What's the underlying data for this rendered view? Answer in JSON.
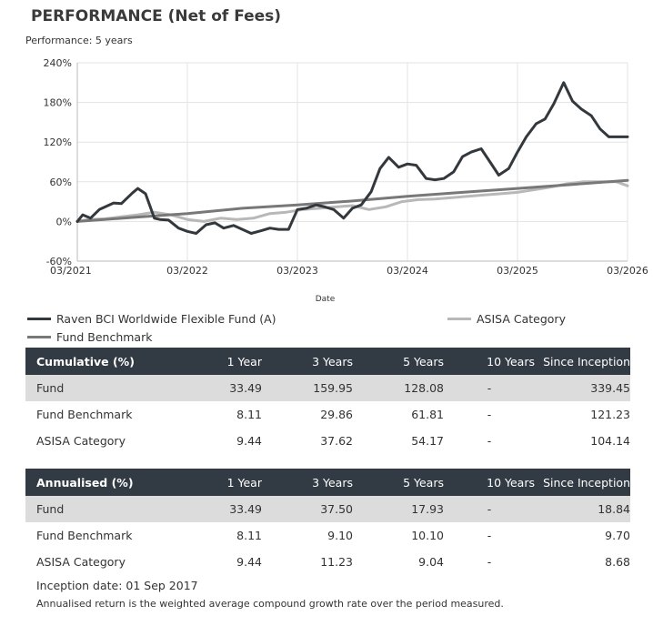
{
  "title": "PERFORMANCE (Net of Fees)",
  "subtitle": "Performance: 5 years",
  "chart_data": {
    "type": "line",
    "xlabel": "Date",
    "ylabel": "",
    "x_ticks": [
      "03/2021",
      "03/2022",
      "03/2023",
      "03/2024",
      "03/2025",
      "03/2026"
    ],
    "y_ticks": [
      "-60%",
      "0%",
      "60%",
      "120%",
      "180%",
      "240%"
    ],
    "ylim": [
      -60,
      240
    ],
    "xlim": [
      2021.0,
      2026.0
    ],
    "grid": true,
    "legend_position": "bottom",
    "series": [
      {
        "name": "Raven BCI Worldwide Flexible Fund (A)",
        "color": "#33383d",
        "width": 3,
        "x": [
          2021.0,
          2021.05,
          2021.12,
          2021.2,
          2021.33,
          2021.4,
          2021.5,
          2021.55,
          2021.62,
          2021.7,
          2021.75,
          2021.83,
          2021.92,
          2022.0,
          2022.08,
          2022.17,
          2022.25,
          2022.33,
          2022.42,
          2022.5,
          2022.58,
          2022.67,
          2022.75,
          2022.83,
          2022.92,
          2023.0,
          2023.08,
          2023.17,
          2023.25,
          2023.33,
          2023.42,
          2023.5,
          2023.58,
          2023.67,
          2023.75,
          2023.83,
          2023.92,
          2024.0,
          2024.08,
          2024.17,
          2024.25,
          2024.33,
          2024.42,
          2024.5,
          2024.58,
          2024.67,
          2024.75,
          2024.83,
          2024.92,
          2025.0,
          2025.08,
          2025.17,
          2025.25,
          2025.33,
          2025.42,
          2025.5,
          2025.58,
          2025.67,
          2025.75,
          2025.83,
          2025.92,
          2026.0
        ],
        "values": [
          0,
          10,
          5,
          18,
          28,
          27,
          43,
          50,
          42,
          5,
          3,
          2,
          -10,
          -15,
          -18,
          -5,
          -2,
          -10,
          -6,
          -12,
          -18,
          -14,
          -10,
          -12,
          -12,
          18,
          20,
          25,
          22,
          18,
          5,
          20,
          25,
          45,
          80,
          97,
          82,
          87,
          85,
          65,
          63,
          65,
          75,
          98,
          105,
          110,
          90,
          70,
          80,
          105,
          128,
          148,
          155,
          178,
          210,
          182,
          170,
          160,
          140,
          128,
          128,
          128
        ],
        "x_end": 2026.0
      },
      {
        "name": "Fund Benchmark",
        "color": "#787878",
        "width": 3,
        "x": [
          2021.0,
          2021.5,
          2022.0,
          2022.5,
          2023.0,
          2023.5,
          2024.0,
          2024.5,
          2025.0,
          2025.5,
          2026.0
        ],
        "values": [
          0,
          6,
          12,
          20,
          25,
          31,
          38,
          44,
          50,
          56,
          62
        ]
      },
      {
        "name": "ASISA Category",
        "color": "#b8b8b8",
        "width": 3,
        "x": [
          2021.0,
          2021.1,
          2021.25,
          2021.4,
          2021.55,
          2021.7,
          2021.85,
          2022.0,
          2022.15,
          2022.3,
          2022.45,
          2022.6,
          2022.75,
          2022.9,
          2023.05,
          2023.2,
          2023.35,
          2023.5,
          2023.65,
          2023.8,
          2023.95,
          2024.1,
          2024.25,
          2024.4,
          2024.55,
          2024.7,
          2024.85,
          2025.0,
          2025.15,
          2025.3,
          2025.45,
          2025.6,
          2025.75,
          2025.9,
          2026.0
        ],
        "values": [
          0,
          3,
          4,
          7,
          10,
          14,
          10,
          3,
          0,
          5,
          3,
          5,
          12,
          14,
          18,
          20,
          22,
          24,
          18,
          22,
          30,
          33,
          34,
          36,
          38,
          40,
          42,
          44,
          48,
          52,
          57,
          60,
          60,
          60,
          54
        ]
      }
    ]
  },
  "legend": [
    {
      "label": "Raven BCI Worldwide Flexible Fund (A)",
      "color": "#33383d"
    },
    {
      "label": "ASISA Category",
      "color": "#b8b8b8"
    },
    {
      "label": "Fund Benchmark",
      "color": "#787878"
    }
  ],
  "cumulative": {
    "headers": [
      "Cumulative (%)",
      "1 Year",
      "3 Years",
      "5 Years",
      "10 Years",
      "Since Inception"
    ],
    "rows": [
      {
        "name": "Fund",
        "values": [
          "33.49",
          "159.95",
          "128.08",
          "-",
          "339.45"
        ]
      },
      {
        "name": "Fund Benchmark",
        "values": [
          "8.11",
          "29.86",
          "61.81",
          "-",
          "121.23"
        ]
      },
      {
        "name": "ASISA Category",
        "values": [
          "9.44",
          "37.62",
          "54.17",
          "-",
          "104.14"
        ]
      }
    ]
  },
  "annualised": {
    "headers": [
      "Annualised (%)",
      "1 Year",
      "3 Years",
      "5 Years",
      "10 Years",
      "Since Inception"
    ],
    "rows": [
      {
        "name": "Fund",
        "values": [
          "33.49",
          "37.50",
          "17.93",
          "-",
          "18.84"
        ]
      },
      {
        "name": "Fund Benchmark",
        "values": [
          "8.11",
          "9.10",
          "10.10",
          "-",
          "9.70"
        ]
      },
      {
        "name": "ASISA Category",
        "values": [
          "9.44",
          "11.23",
          "9.04",
          "-",
          "8.68"
        ]
      }
    ]
  },
  "footnotes": {
    "inception": "Inception date: 01 Sep 2017",
    "annualised_note": "Annualised return is the weighted average compound growth rate over the period measured."
  }
}
